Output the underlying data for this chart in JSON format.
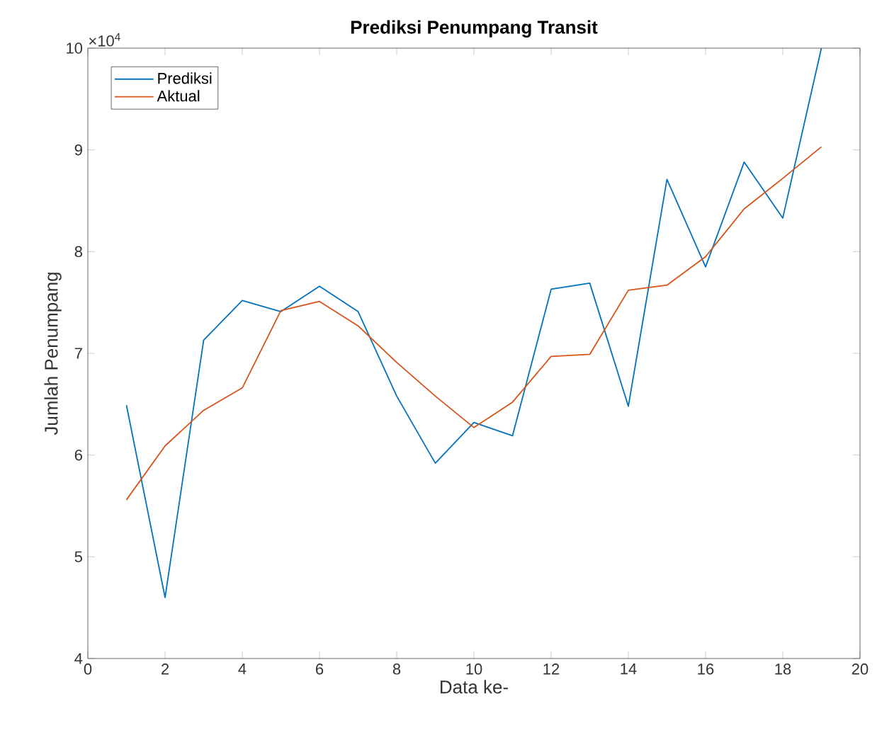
{
  "chart_data": {
    "type": "line",
    "title": "Prediksi Penumpang Transit",
    "xlabel": "Data ke-",
    "ylabel": "Jumlah Penumpang",
    "annotations": [
      "×10$^{4}$"
    ],
    "x": [
      1,
      2,
      3,
      4,
      5,
      6,
      7,
      8,
      9,
      10,
      11,
      12,
      13,
      14,
      15,
      16,
      17,
      18,
      19
    ],
    "series": [
      {
        "name": "Prediksi",
        "color": "#0072bd",
        "values": [
          6.49,
          4.6,
          7.13,
          7.52,
          7.41,
          7.66,
          7.41,
          6.58,
          5.92,
          6.32,
          6.19,
          7.63,
          7.69,
          6.48,
          8.71,
          7.85,
          8.88,
          8.33,
          10.0
        ]
      },
      {
        "name": "Aktual",
        "color": "#d95319",
        "values": [
          5.56,
          6.09,
          6.44,
          6.66,
          7.42,
          7.51,
          7.27,
          6.91,
          6.58,
          6.27,
          6.52,
          6.97,
          6.99,
          7.62,
          7.67,
          7.95,
          8.42,
          8.72,
          9.03
        ]
      }
    ],
    "xlim": [
      0,
      20
    ],
    "xticks": [
      0,
      2,
      4,
      6,
      8,
      10,
      12,
      14,
      16,
      18,
      20
    ],
    "ylim": [
      4,
      10
    ],
    "yticks": [
      4,
      5,
      6,
      7,
      8,
      9,
      10
    ],
    "legend": "top left",
    "grid": false,
    "marker": "none",
    "line_style": "solid"
  }
}
